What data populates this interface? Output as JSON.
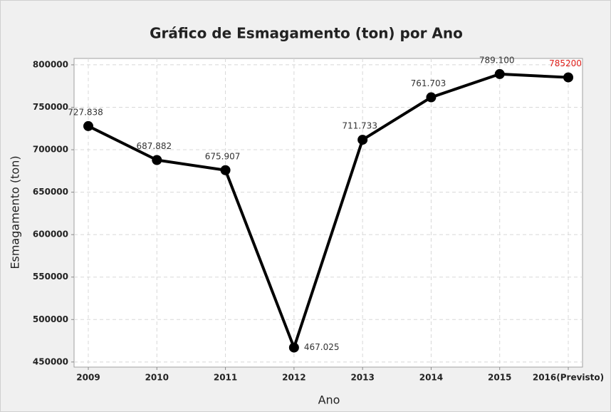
{
  "chart_data": {
    "type": "line",
    "title": "Gráfico de Esmagamento (ton)  por Ano",
    "x_label": "Ano",
    "y_label": "Esmagamento (ton)",
    "categories": [
      "2009",
      "2010",
      "2011",
      "2012",
      "2013",
      "2014",
      "2015",
      "2016(Previsto)"
    ],
    "series": [
      {
        "name": "Esmagamento",
        "color": "#000000",
        "values": [
          727838,
          687882,
          675907,
          467025,
          711733,
          761703,
          789100,
          785200
        ],
        "value_labels": [
          "727.838",
          "687.882",
          "675.907",
          "467.025",
          "711.733",
          "761.703",
          "789.100",
          "785200"
        ],
        "value_label_colors": [
          "#333333",
          "#333333",
          "#333333",
          "#333333",
          "#333333",
          "#333333",
          "#333333",
          "#e0201b"
        ]
      }
    ],
    "ylim": [
      444000,
      807500
    ],
    "yticks": [
      450000,
      500000,
      550000,
      600000,
      650000,
      700000,
      750000,
      800000
    ],
    "grid": true
  }
}
